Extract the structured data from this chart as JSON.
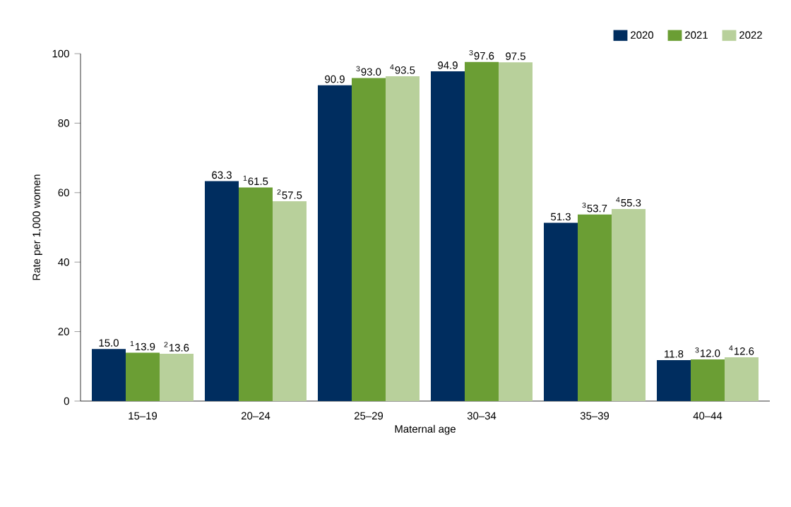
{
  "chart_data": {
    "type": "bar",
    "xlabel": "Maternal age",
    "ylabel": "Rate per 1,000 women",
    "categories": [
      "15–19",
      "20–24",
      "25–29",
      "30–34",
      "35–39",
      "40–44"
    ],
    "ylim": [
      0,
      100
    ],
    "yticks": [
      0,
      20,
      40,
      60,
      80,
      100
    ],
    "legend": "top right",
    "series": [
      {
        "name": "2020",
        "color": "#002d5f",
        "values": [
          15.0,
          63.3,
          90.9,
          94.9,
          51.3,
          11.8
        ],
        "value_labels": [
          "15.0",
          "63.3",
          "90.9",
          "94.9",
          "51.3",
          "11.8"
        ]
      },
      {
        "name": "2021",
        "color": "#6b9e34",
        "values": [
          13.9,
          61.5,
          93.0,
          97.6,
          53.7,
          12.0
        ],
        "value_labels": [
          "$^{1}$13.9",
          "$^{1}$61.5",
          "$^{3}$93.0",
          "$^{3}$97.6",
          "$^{3}$53.7",
          "$^{3}$12.0"
        ]
      },
      {
        "name": "2022",
        "color": "#b8d09b",
        "values": [
          13.6,
          57.5,
          93.5,
          97.5,
          55.3,
          12.6
        ],
        "value_labels": [
          "$^{2}$13.6",
          "$^{2}$57.5",
          "$^{4}$93.5",
          "97.5",
          "$^{4}$55.3",
          "$^{4}$12.6"
        ]
      }
    ]
  }
}
